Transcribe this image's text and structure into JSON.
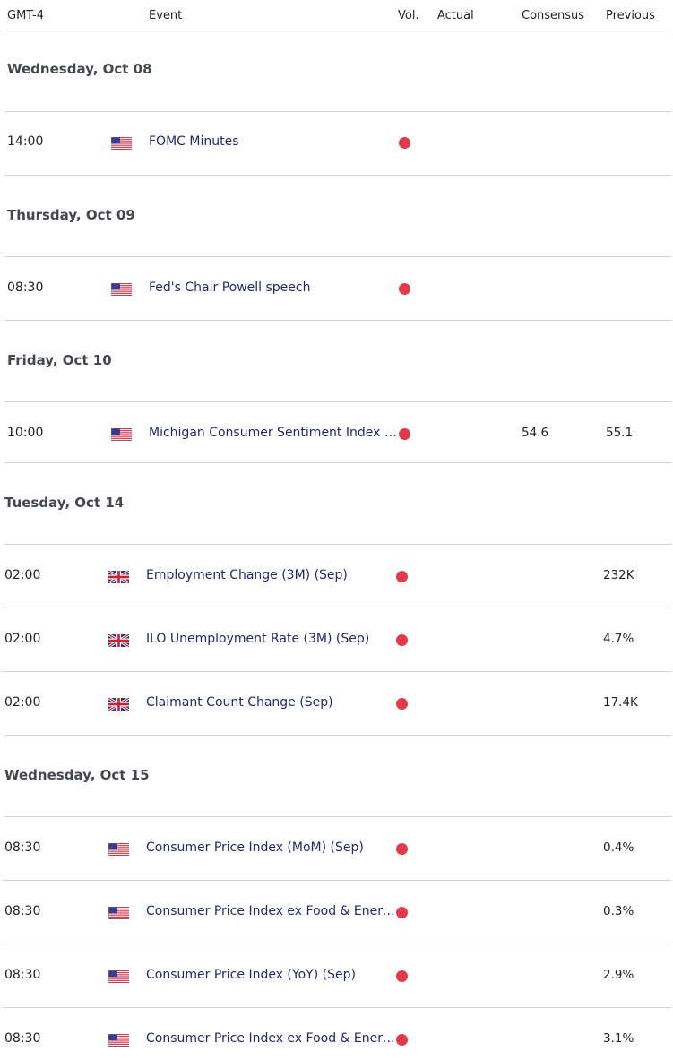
{
  "header": {
    "timezone": "GMT-4",
    "event": "Event",
    "vol": "Vol.",
    "actual": "Actual",
    "consensus": "Consensus",
    "previous": "Previous"
  },
  "colors": {
    "vol_high": "#e03b4b",
    "event_text": "#1f2a6e",
    "divider": "#cfd2d8"
  },
  "days": [
    {
      "date": "Wednesday, Oct 08",
      "events": [
        {
          "time": "14:00",
          "flag": "us-flag-icon",
          "event": "FOMC Minutes",
          "vol": "high",
          "actual": "",
          "consensus": "",
          "previous": ""
        }
      ]
    },
    {
      "date": "Thursday, Oct 09",
      "events": [
        {
          "time": "08:30",
          "flag": "us-flag-icon",
          "event": "Fed's Chair Powell speech",
          "vol": "high",
          "actual": "",
          "consensus": "",
          "previous": ""
        }
      ]
    },
    {
      "date": "Friday, Oct 10",
      "events": [
        {
          "time": "10:00",
          "flag": "us-flag-icon",
          "event": "Michigan Consumer Sentiment Index (…",
          "vol": "high",
          "actual": "",
          "consensus": "54.6",
          "previous": "55.1"
        }
      ]
    },
    {
      "date": "Tuesday, Oct 14",
      "events": [
        {
          "time": "02:00",
          "flag": "uk-flag-icon",
          "event": "Employment Change (3M) (Sep)",
          "vol": "high",
          "actual": "",
          "consensus": "",
          "previous": "232K"
        },
        {
          "time": "02:00",
          "flag": "uk-flag-icon",
          "event": "ILO Unemployment Rate (3M) (Sep)",
          "vol": "high",
          "actual": "",
          "consensus": "",
          "previous": "4.7%"
        },
        {
          "time": "02:00",
          "flag": "uk-flag-icon",
          "event": "Claimant Count Change (Sep)",
          "vol": "high",
          "actual": "",
          "consensus": "",
          "previous": "17.4K"
        }
      ]
    },
    {
      "date": "Wednesday, Oct 15",
      "events": [
        {
          "time": "08:30",
          "flag": "us-flag-icon",
          "event": "Consumer Price Index (MoM) (Sep)",
          "vol": "high",
          "actual": "",
          "consensus": "",
          "previous": "0.4%"
        },
        {
          "time": "08:30",
          "flag": "us-flag-icon",
          "event": "Consumer Price Index ex Food & Energ…",
          "vol": "high",
          "actual": "",
          "consensus": "",
          "previous": "0.3%"
        },
        {
          "time": "08:30",
          "flag": "us-flag-icon",
          "event": "Consumer Price Index (YoY) (Sep)",
          "vol": "high",
          "actual": "",
          "consensus": "",
          "previous": "2.9%"
        },
        {
          "time": "08:30",
          "flag": "us-flag-icon",
          "event": "Consumer Price Index ex Food & Energ…",
          "vol": "high",
          "actual": "",
          "consensus": "",
          "previous": "3.1%"
        }
      ]
    }
  ]
}
